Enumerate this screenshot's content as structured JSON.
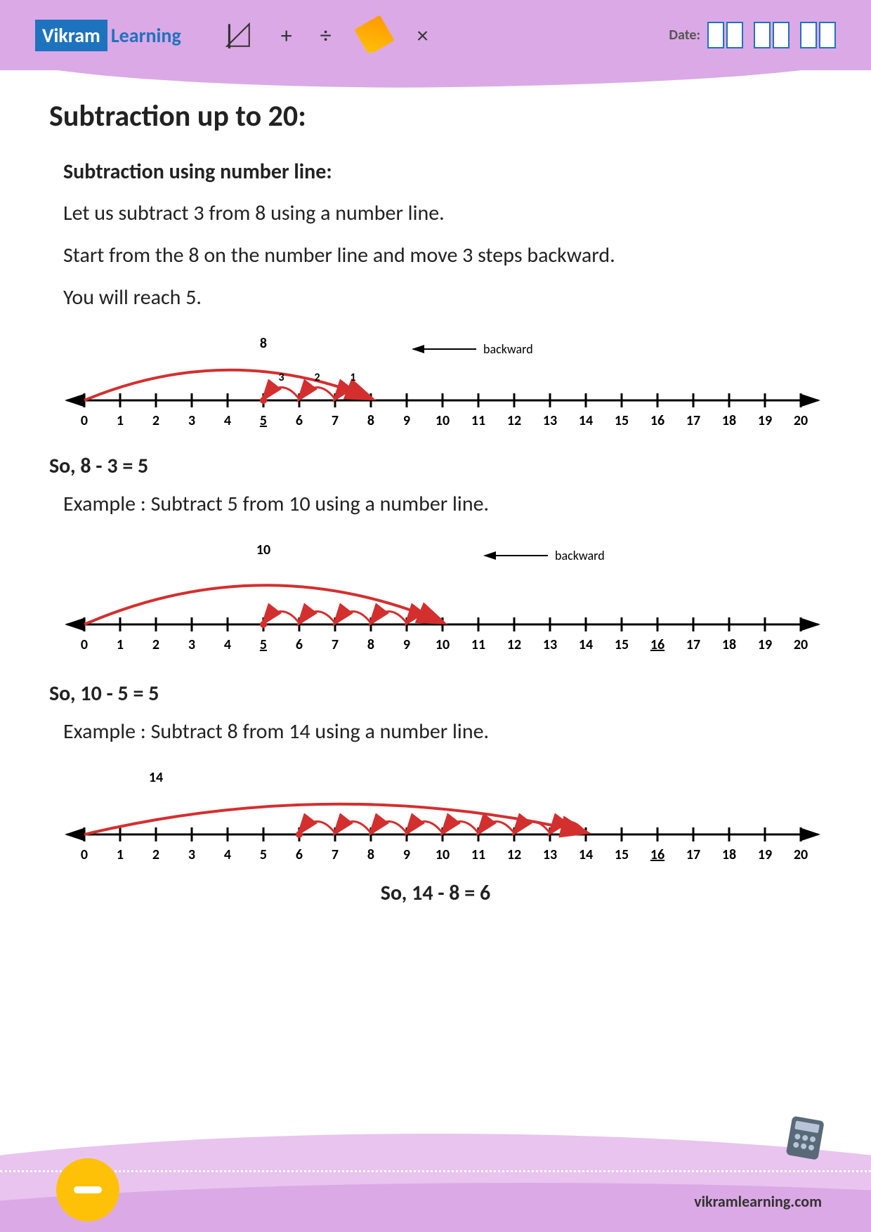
{
  "header": {
    "logo_brand": "Vikram",
    "logo_suffix": "Learning",
    "date_label": "Date:",
    "symbols": [
      "+",
      "÷",
      "×"
    ]
  },
  "colors": {
    "header_bg": "#dba9e5",
    "logo_bg": "#1e73be",
    "arc_red": "#d32f2f",
    "line_black": "#000000",
    "footer_yellow": "#ffc107"
  },
  "content": {
    "main_title": "Subtraction up to 20:",
    "sub_title": "Subtraction using number line:",
    "intro1": "Let us subtract 3 from 8 using a number line.",
    "intro2": "Start from the 8 on the number line and move 3 steps backward.",
    "intro3": "You will reach 5.",
    "result1": "So, 8 - 3 = 5",
    "example2_text": "Example : Subtract 5 from 10 using a number line.",
    "result2": "So, 10 - 5 = 5",
    "example3_text": "Example : Subtract 8 from 14 using a number line.",
    "result3": "So, 14 - 8 = 6",
    "backward_label": "backward"
  },
  "numberlines": {
    "range": {
      "min": 0,
      "max": 20,
      "tick_step": 1
    },
    "line1": {
      "big_arc_label": "8",
      "big_arc": {
        "from": 0,
        "to": 8
      },
      "small_arcs": [
        {
          "from": 8,
          "to": 7,
          "label": "1"
        },
        {
          "from": 7,
          "to": 6,
          "label": "2"
        },
        {
          "from": 6,
          "to": 5,
          "label": "3"
        }
      ],
      "landing": 5,
      "underlined_ticks": [
        5
      ],
      "backward_arrow_at": 8
    },
    "line2": {
      "big_arc_label": "10",
      "big_arc": {
        "from": 0,
        "to": 10
      },
      "small_arcs": [
        {
          "from": 10,
          "to": 9
        },
        {
          "from": 9,
          "to": 8
        },
        {
          "from": 8,
          "to": 7
        },
        {
          "from": 7,
          "to": 6
        },
        {
          "from": 6,
          "to": 5
        }
      ],
      "landing": 5,
      "underlined_ticks": [
        5,
        16
      ],
      "backward_arrow_at": 10
    },
    "line3": {
      "big_arc_label": "14",
      "big_arc": {
        "from": 0,
        "to": 14
      },
      "small_arcs": [
        {
          "from": 14,
          "to": 13
        },
        {
          "from": 13,
          "to": 12
        },
        {
          "from": 12,
          "to": 11
        },
        {
          "from": 11,
          "to": 10
        },
        {
          "from": 10,
          "to": 9
        },
        {
          "from": 9,
          "to": 8
        },
        {
          "from": 8,
          "to": 7
        },
        {
          "from": 7,
          "to": 6
        }
      ],
      "landing": 6,
      "underlined_ticks": [
        16
      ]
    }
  },
  "footer": {
    "url": "vikramlearning.com"
  }
}
